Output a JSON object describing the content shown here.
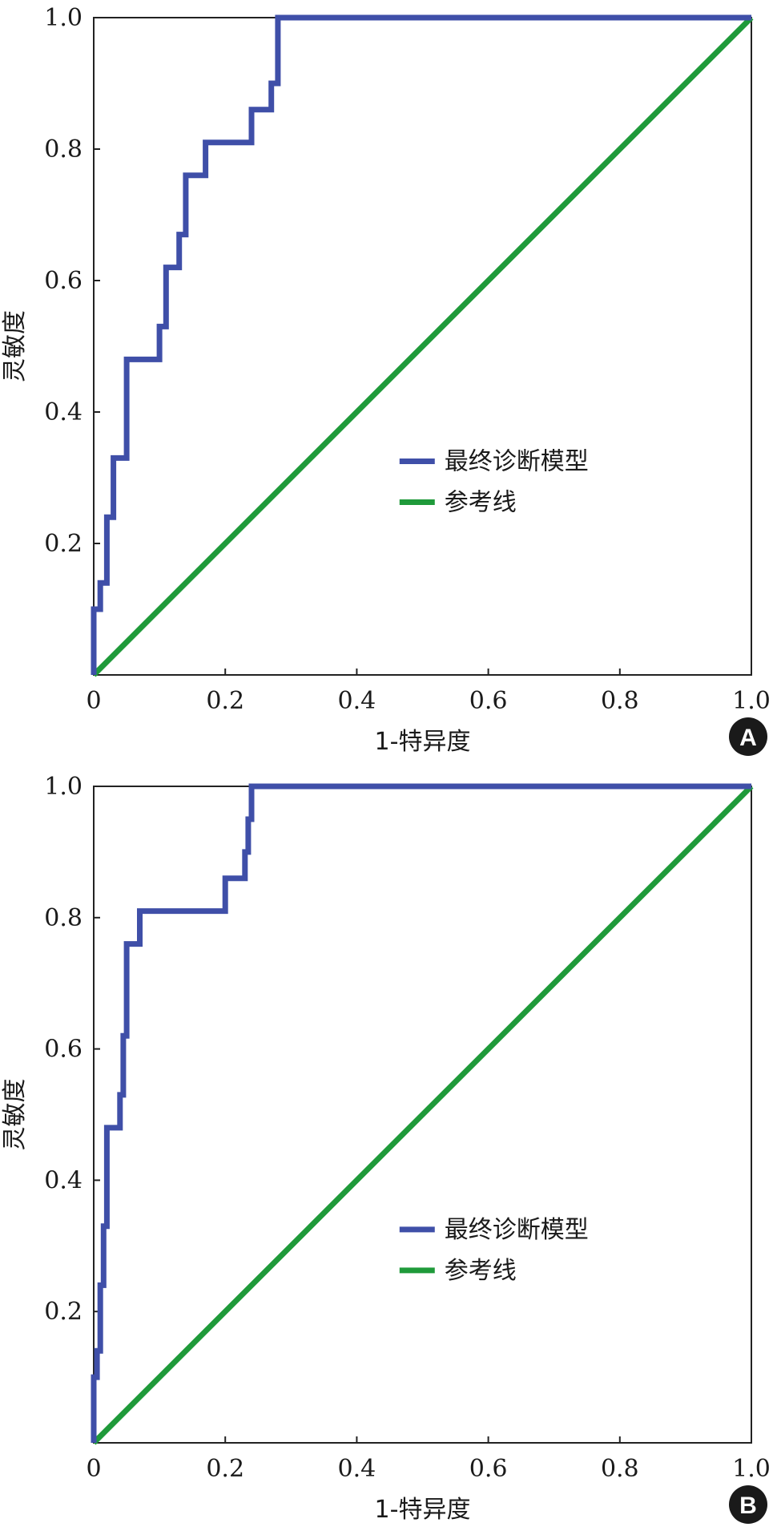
{
  "chart_data": [
    {
      "type": "line",
      "panel_label": "A",
      "xlabel": "1-特异度",
      "ylabel": "灵敏度",
      "xlim": [
        0,
        1.0
      ],
      "ylim": [
        0,
        1.0
      ],
      "x_tick_labels": [
        "0",
        "0.2",
        "0.4",
        "0.6",
        "0.8",
        "1.0"
      ],
      "y_tick_labels": [
        "0.2",
        "0.4",
        "0.6",
        "0.8",
        "1.0"
      ],
      "legend_position": "bottom-right",
      "series": [
        {
          "name": "最终诊断模型",
          "color": "#3f4fa8",
          "x": [
            0,
            0,
            0.01,
            0.01,
            0.02,
            0.02,
            0.03,
            0.03,
            0.05,
            0.05,
            0.1,
            0.1,
            0.11,
            0.11,
            0.13,
            0.13,
            0.14,
            0.14,
            0.17,
            0.17,
            0.24,
            0.24,
            0.27,
            0.27,
            0.28,
            0.28,
            1.0
          ],
          "y": [
            0,
            0.1,
            0.1,
            0.14,
            0.14,
            0.24,
            0.24,
            0.33,
            0.33,
            0.48,
            0.48,
            0.53,
            0.53,
            0.62,
            0.62,
            0.67,
            0.67,
            0.76,
            0.76,
            0.81,
            0.81,
            0.86,
            0.86,
            0.9,
            0.9,
            1.0,
            1.0
          ]
        },
        {
          "name": "参考线",
          "color": "#1f9a3a",
          "x": [
            0,
            1.0
          ],
          "y": [
            0,
            1.0
          ]
        }
      ]
    },
    {
      "type": "line",
      "panel_label": "B",
      "xlabel": "1-特异度",
      "ylabel": "灵敏度",
      "xlim": [
        0,
        1.0
      ],
      "ylim": [
        0,
        1.0
      ],
      "x_tick_labels": [
        "0",
        "0.2",
        "0.4",
        "0.6",
        "0.8",
        "1.0"
      ],
      "y_tick_labels": [
        "0.2",
        "0.4",
        "0.6",
        "0.8",
        "1.0"
      ],
      "legend_position": "bottom-right",
      "series": [
        {
          "name": "最终诊断模型",
          "color": "#3f4fa8",
          "x": [
            0,
            0,
            0.005,
            0.005,
            0.01,
            0.01,
            0.015,
            0.015,
            0.02,
            0.02,
            0.04,
            0.04,
            0.045,
            0.045,
            0.05,
            0.05,
            0.07,
            0.07,
            0.11,
            0.11,
            0.2,
            0.2,
            0.23,
            0.23,
            0.235,
            0.235,
            0.24,
            0.24,
            1.0
          ],
          "y": [
            0,
            0.1,
            0.1,
            0.14,
            0.14,
            0.24,
            0.24,
            0.33,
            0.33,
            0.48,
            0.48,
            0.53,
            0.53,
            0.62,
            0.62,
            0.76,
            0.76,
            0.81,
            0.81,
            0.81,
            0.81,
            0.86,
            0.86,
            0.9,
            0.9,
            0.95,
            0.95,
            1.0,
            1.0
          ]
        },
        {
          "name": "参考线",
          "color": "#1f9a3a",
          "x": [
            0,
            1.0
          ],
          "y": [
            0,
            1.0
          ]
        }
      ]
    }
  ]
}
